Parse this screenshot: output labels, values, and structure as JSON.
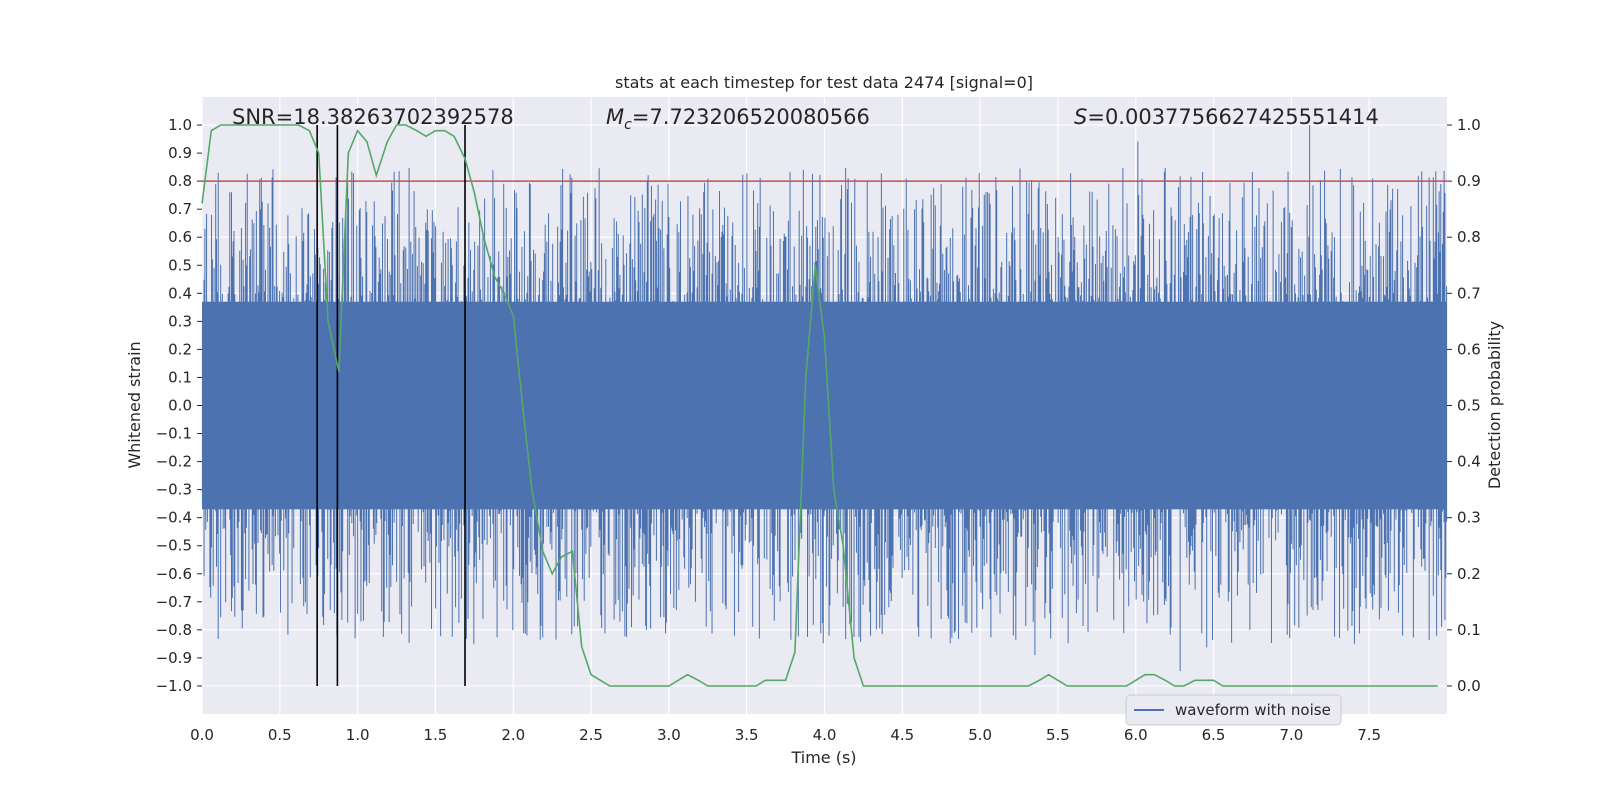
{
  "chart_data": {
    "type": "line",
    "title": "stats at each timestep for test data 2474 [signal=0]",
    "xlabel": "Time (s)",
    "ylabel_left": "Whitened strain",
    "ylabel_right": "Detection probability",
    "xlim": [
      0,
      8
    ],
    "ylim_left": [
      -1.1,
      1.1
    ],
    "ylim_right": [
      -0.05,
      1.05
    ],
    "x_ticks": [
      "0.0",
      "0.5",
      "1.0",
      "1.5",
      "2.0",
      "2.5",
      "3.0",
      "3.5",
      "4.0",
      "4.5",
      "5.0",
      "5.5",
      "6.0",
      "6.5",
      "7.0",
      "7.5"
    ],
    "y_ticks_left": [
      "1.0",
      "0.9",
      "0.8",
      "0.7",
      "0.6",
      "0.5",
      "0.4",
      "0.3",
      "0.2",
      "0.1",
      "0.0",
      "−0.1",
      "−0.2",
      "−0.3",
      "−0.4",
      "−0.5",
      "−0.6",
      "−0.7",
      "−0.8",
      "−0.9",
      "−1.0"
    ],
    "y_ticks_right": [
      "1.0",
      "0.9",
      "0.8",
      "0.7",
      "0.6",
      "0.5",
      "0.4",
      "0.3",
      "0.2",
      "0.1",
      "0.0"
    ],
    "grid": true,
    "legend_position": "bottom-right",
    "annotations": {
      "snr": "SNR=18.38263702392578",
      "mc_symbol": "M",
      "mc_sub": "c",
      "mc_value": "=7.723206520080566",
      "s_symbol": "S",
      "s_value": "=0.0037756627425551414"
    },
    "series": [
      {
        "name": "waveform with noise",
        "color": "#4c72b0",
        "kind": "strain",
        "axis": "left"
      },
      {
        "color": "#55a868",
        "kind": "probability",
        "axis": "right",
        "x": [
          0.0,
          0.06,
          0.12,
          0.19,
          0.25,
          0.31,
          0.38,
          0.44,
          0.5,
          0.56,
          0.62,
          0.69,
          0.75,
          0.81,
          0.88,
          0.94,
          1.0,
          1.06,
          1.12,
          1.19,
          1.25,
          1.31,
          1.38,
          1.44,
          1.5,
          1.56,
          1.62,
          1.69,
          1.75,
          1.81,
          1.88,
          1.94,
          2.0,
          2.06,
          2.12,
          2.19,
          2.25,
          2.31,
          2.38,
          2.44,
          2.5,
          2.56,
          2.62,
          2.69,
          2.75,
          2.81,
          2.88,
          2.94,
          3.0,
          3.06,
          3.12,
          3.19,
          3.25,
          3.31,
          3.38,
          3.44,
          3.5,
          3.56,
          3.62,
          3.69,
          3.75,
          3.81,
          3.88,
          3.94,
          4.0,
          4.06,
          4.12,
          4.19,
          4.25,
          4.31,
          4.38,
          4.44,
          4.5,
          4.56,
          4.62,
          4.69,
          4.75,
          4.81,
          4.88,
          4.94,
          5.0,
          5.06,
          5.12,
          5.19,
          5.25,
          5.31,
          5.38,
          5.44,
          5.5,
          5.56,
          5.62,
          5.69,
          5.75,
          5.81,
          5.88,
          5.94,
          6.0,
          6.06,
          6.12,
          6.19,
          6.25,
          6.31,
          6.38,
          6.44,
          6.5,
          6.56,
          6.62,
          6.69,
          6.75,
          6.81,
          6.88,
          6.94,
          7.0,
          7.06,
          7.12,
          7.19,
          7.25,
          7.31,
          7.38,
          7.44,
          7.5,
          7.56,
          7.62,
          7.69,
          7.75,
          7.81,
          7.88,
          7.94
        ],
        "values": [
          0.86,
          0.99,
          1.0,
          1.0,
          1.0,
          1.0,
          1.0,
          1.0,
          1.0,
          1.0,
          1.0,
          0.99,
          0.95,
          0.65,
          0.56,
          0.95,
          0.99,
          0.97,
          0.91,
          0.97,
          1.0,
          1.0,
          0.99,
          0.98,
          0.99,
          0.99,
          0.98,
          0.94,
          0.88,
          0.8,
          0.73,
          0.7,
          0.66,
          0.5,
          0.35,
          0.24,
          0.2,
          0.23,
          0.24,
          0.07,
          0.02,
          0.01,
          0.0,
          0.0,
          0.0,
          0.0,
          0.0,
          0.0,
          0.0,
          0.01,
          0.02,
          0.01,
          0.0,
          0.0,
          0.0,
          0.0,
          0.0,
          0.0,
          0.01,
          0.01,
          0.01,
          0.06,
          0.55,
          0.75,
          0.62,
          0.35,
          0.25,
          0.05,
          0.0,
          0.0,
          0.0,
          0.0,
          0.0,
          0.0,
          0.0,
          0.0,
          0.0,
          0.0,
          0.0,
          0.0,
          0.0,
          0.0,
          0.0,
          0.0,
          0.0,
          0.0,
          0.01,
          0.02,
          0.01,
          0.0,
          0.0,
          0.0,
          0.0,
          0.0,
          0.0,
          0.0,
          0.01,
          0.02,
          0.02,
          0.01,
          0.0,
          0.0,
          0.01,
          0.01,
          0.01,
          0.0,
          0.0,
          0.0,
          0.0,
          0.0,
          0.0,
          0.0,
          0.0,
          0.0,
          0.0,
          0.0,
          0.0,
          0.0,
          0.0,
          0.0,
          0.0,
          0.0,
          0.0,
          0.0,
          0.0,
          0.0,
          0.0,
          0.0
        ]
      },
      {
        "color": "#c44e52",
        "kind": "threshold",
        "axis": "right",
        "values": [
          0.9
        ]
      }
    ],
    "vertical_markers_x": [
      0.74,
      0.87,
      1.69
    ]
  }
}
